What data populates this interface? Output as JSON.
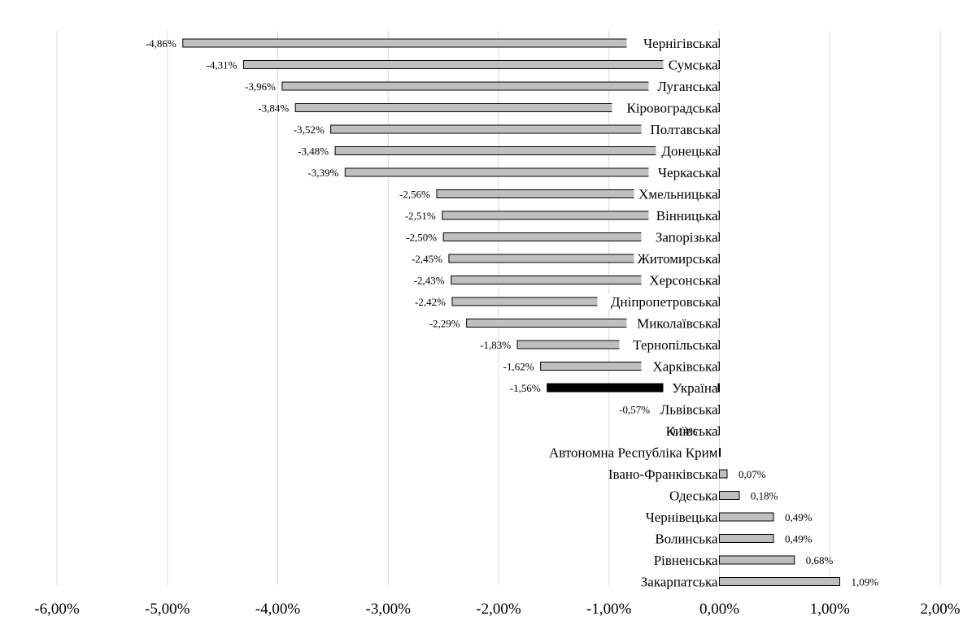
{
  "chart_data": {
    "type": "bar",
    "orientation": "horizontal",
    "title": "",
    "xlabel": "",
    "ylabel": "",
    "xlim": [
      -6,
      2
    ],
    "x_ticks": [
      "-6,00%",
      "-5,00%",
      "-4,00%",
      "-3,00%",
      "-2,00%",
      "-1,00%",
      "0,00%",
      "1,00%",
      "2,00%"
    ],
    "grid": true,
    "legend": "none",
    "colors": {
      "bar": "#bfbfbf",
      "highlight": "#000000",
      "outline": "#000000",
      "grid": "#d9d9d9"
    },
    "highlight_category": "Україна",
    "categories": [
      "Чернігівська",
      "Сумська",
      "Луганська",
      "Кіровоградська",
      "Полтавська",
      "Донецька",
      "Черкаська",
      "Хмельницька",
      "Вінницька",
      "Запорізька",
      "Житомирська",
      "Херсонська",
      "Дніпропетровська",
      "Миколаївська",
      "Тернопільська",
      "Харківська",
      "Україна",
      "Львівська",
      "Київська",
      "Автономна  Республіка Крим",
      "Івано-Франківська",
      "Одеська",
      "Чернівецька",
      "Волинська",
      "Рівненська",
      "Закарпатська"
    ],
    "values": [
      -4.86,
      -4.31,
      -3.96,
      -3.84,
      -3.52,
      -3.48,
      -3.39,
      -2.56,
      -2.51,
      -2.5,
      -2.45,
      -2.43,
      -2.42,
      -2.29,
      -1.83,
      -1.62,
      -1.56,
      -0.57,
      -0.14,
      0.0,
      0.07,
      0.18,
      0.49,
      0.49,
      0.68,
      1.09
    ],
    "data_labels": [
      "-4,86%",
      "-4,31%",
      "-3,96%",
      "-3,84%",
      "-3,52%",
      "-3,48%",
      "-3,39%",
      "-2,56%",
      "-2,51%",
      "-2,50%",
      "-2,45%",
      "-2,43%",
      "-2,42%",
      "-2,29%",
      "-1,83%",
      "-1,62%",
      "-1,56%",
      "-0,57%",
      "-0,14%",
      "",
      "0,07%",
      "0,18%",
      "0,49%",
      "0,49%",
      "0,68%",
      "1,09%"
    ]
  }
}
